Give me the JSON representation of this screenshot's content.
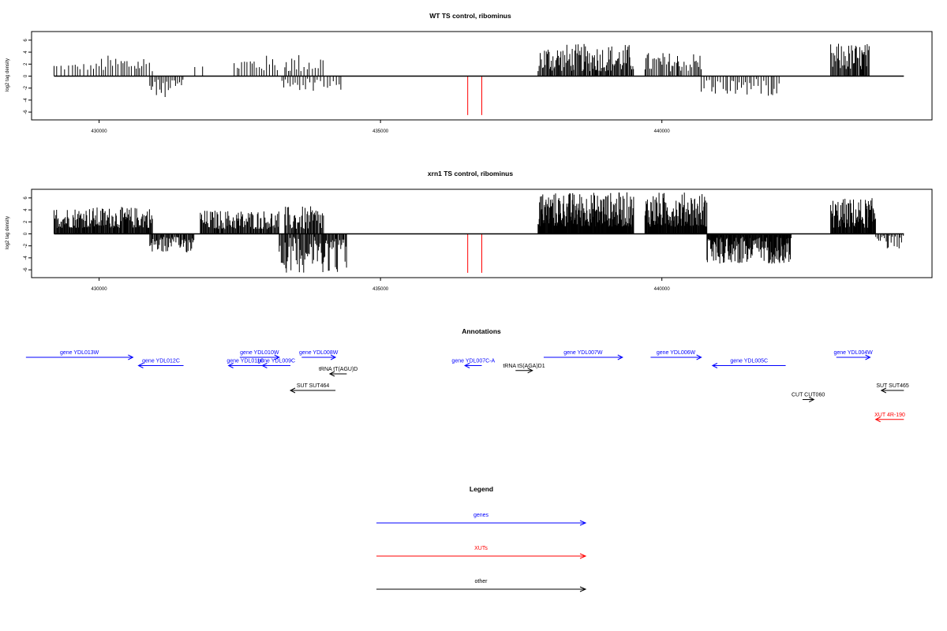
{
  "chart_data": [
    {
      "type": "bar",
      "panel": "wt",
      "title": "WT TS control, ribominus",
      "ylabel": "log2 tag density",
      "xlim": [
        428800,
        444800
      ],
      "ylim": [
        -6.8,
        7.5
      ],
      "x_ticks": [
        430000,
        435000,
        440000
      ],
      "x_tick_labels": [
        "430000",
        "435000",
        "440000"
      ],
      "y_ticks": [
        -6,
        -4,
        -2,
        0,
        2,
        4,
        6
      ],
      "y_tick_labels": [
        "-6",
        "-4",
        "-2",
        "0",
        "2",
        "4",
        "6"
      ],
      "baseline": [
        429200,
        444300
      ],
      "regions": [
        {
          "from": 429200,
          "to": 429950,
          "sign": 1,
          "min": 1.0,
          "max": 2.2,
          "step": 55
        },
        {
          "from": 430000,
          "to": 430950,
          "sign": 1,
          "min": 0.8,
          "max": 3.5,
          "step": 45
        },
        {
          "from": 430900,
          "to": 431500,
          "sign": -1,
          "min": 0.6,
          "max": 3.5,
          "step": 28
        },
        {
          "from": 431700,
          "to": 431900,
          "sign": 1,
          "min": 1.0,
          "max": 1.8,
          "step": 110
        },
        {
          "from": 432400,
          "to": 433200,
          "sign": 1,
          "min": 0.8,
          "max": 3.5,
          "step": 45
        },
        {
          "from": 433300,
          "to": 434000,
          "sign": 1,
          "min": 0.7,
          "max": 3.8,
          "step": 42
        },
        {
          "from": 433250,
          "to": 434300,
          "sign": -1,
          "min": 0.4,
          "max": 2.5,
          "step": 45
        },
        {
          "from": 437800,
          "to": 439500,
          "sign": 1,
          "min": 0.8,
          "max": 5.4,
          "step": 16
        },
        {
          "from": 439700,
          "to": 440700,
          "sign": 1,
          "min": 0.8,
          "max": 4.0,
          "step": 28
        },
        {
          "from": 440700,
          "to": 442100,
          "sign": -1,
          "min": 0.5,
          "max": 3.3,
          "step": 38
        },
        {
          "from": 443000,
          "to": 443700,
          "sign": 1,
          "min": 1.0,
          "max": 5.5,
          "step": 16
        }
      ],
      "red_bars": [
        {
          "x": 436550,
          "y": -6.5
        },
        {
          "x": 436800,
          "y": -6.5
        }
      ]
    },
    {
      "type": "bar",
      "panel": "xrn1",
      "title": "xrn1 TS control, ribominus",
      "ylabel": "log2 tag density",
      "xlim": [
        428800,
        444800
      ],
      "ylim": [
        -6.8,
        7.5
      ],
      "x_ticks": [
        430000,
        435000,
        440000
      ],
      "x_tick_labels": [
        "430000",
        "435000",
        "440000"
      ],
      "y_ticks": [
        -6,
        -4,
        -2,
        0,
        2,
        4,
        6
      ],
      "y_tick_labels": [
        "-6",
        "-4",
        "-2",
        "0",
        "2",
        "4",
        "6"
      ],
      "baseline": [
        429200,
        444300
      ],
      "regions": [
        {
          "from": 429200,
          "to": 430950,
          "sign": 1,
          "min": 1.0,
          "max": 4.5,
          "step": 12
        },
        {
          "from": 430900,
          "to": 431700,
          "sign": -1,
          "min": 0.5,
          "max": 3.2,
          "step": 15
        },
        {
          "from": 431800,
          "to": 433200,
          "sign": 1,
          "min": 0.8,
          "max": 4.0,
          "step": 14
        },
        {
          "from": 433300,
          "to": 434000,
          "sign": 1,
          "min": 0.7,
          "max": 4.6,
          "step": 16
        },
        {
          "from": 433200,
          "to": 434400,
          "sign": -1,
          "min": 0.5,
          "max": 6.5,
          "step": 16
        },
        {
          "from": 437800,
          "to": 439500,
          "sign": 1,
          "min": 1.2,
          "max": 7.0,
          "step": 8
        },
        {
          "from": 439700,
          "to": 440800,
          "sign": 1,
          "min": 1.2,
          "max": 7.0,
          "step": 9
        },
        {
          "from": 440800,
          "to": 442300,
          "sign": -1,
          "min": 0.5,
          "max": 5.0,
          "step": 10
        },
        {
          "from": 443000,
          "to": 443800,
          "sign": 1,
          "min": 1.0,
          "max": 6.0,
          "step": 10
        },
        {
          "from": 443800,
          "to": 444300,
          "sign": -1,
          "min": 0.3,
          "max": 2.5,
          "step": 25
        }
      ],
      "red_bars": [
        {
          "x": 436550,
          "y": -6.5
        },
        {
          "x": 436800,
          "y": -6.5
        }
      ]
    }
  ],
  "annotations": {
    "title": "Annotations",
    "colors": {
      "gene": "#0000ff",
      "xut": "#ff0000",
      "other": "#000000"
    },
    "features": [
      {
        "label": "gene YDL013W",
        "start": 428700,
        "end": 430600,
        "row": 0,
        "dir": "right",
        "kind": "gene"
      },
      {
        "label": "gene YDL012C",
        "start": 430700,
        "end": 431500,
        "row": 1,
        "dir": "left",
        "kind": "gene"
      },
      {
        "label": "gene YDL010W",
        "start": 432500,
        "end": 433200,
        "row": 0,
        "dir": "right",
        "kind": "gene"
      },
      {
        "label": "gene YDL011C",
        "start": 432300,
        "end": 432900,
        "row": 1,
        "dir": "left",
        "kind": "gene"
      },
      {
        "label": "gene YDL009C",
        "start": 432900,
        "end": 433400,
        "row": 1,
        "dir": "left",
        "kind": "gene"
      },
      {
        "label": "gene YDL008W",
        "start": 433600,
        "end": 434200,
        "row": 0,
        "dir": "right",
        "kind": "gene"
      },
      {
        "label": "tRNA tT(AGU)D",
        "start": 434100,
        "end": 434400,
        "row": 2,
        "dir": "left",
        "kind": "other"
      },
      {
        "label": "SUT SUT464",
        "start": 433400,
        "end": 434200,
        "row": 4,
        "dir": "left",
        "kind": "other"
      },
      {
        "label": "gene YDL007C-A",
        "start": 436500,
        "end": 436800,
        "row": 1,
        "dir": "left",
        "kind": "gene"
      },
      {
        "label": "tRNA tS(AGA)D1",
        "start": 437400,
        "end": 437700,
        "row": 1.6,
        "dir": "right",
        "kind": "other"
      },
      {
        "label": "gene YDL007W",
        "start": 437900,
        "end": 439300,
        "row": 0,
        "dir": "right",
        "kind": "gene"
      },
      {
        "label": "gene YDL006W",
        "start": 439800,
        "end": 440700,
        "row": 0,
        "dir": "right",
        "kind": "gene"
      },
      {
        "label": "gene YDL005C",
        "start": 440900,
        "end": 442200,
        "row": 1,
        "dir": "left",
        "kind": "gene"
      },
      {
        "label": "gene YDL004W",
        "start": 443100,
        "end": 443700,
        "row": 0,
        "dir": "right",
        "kind": "gene"
      },
      {
        "label": "CUT CUT060",
        "start": 442500,
        "end": 442700,
        "row": 5.1,
        "dir": "right",
        "kind": "other"
      },
      {
        "label": "SUT SUT465",
        "start": 443900,
        "end": 444300,
        "row": 4,
        "dir": "left",
        "kind": "other"
      },
      {
        "label": "XUT 4R-190",
        "start": 443800,
        "end": 444300,
        "row": 7.5,
        "dir": "left",
        "kind": "xut"
      }
    ]
  },
  "legend": {
    "title": "Legend",
    "items": [
      {
        "label": "genes",
        "color": "#0000ff"
      },
      {
        "label": "XUTs",
        "color": "#ff0000"
      },
      {
        "label": "other",
        "color": "#000000"
      }
    ]
  }
}
